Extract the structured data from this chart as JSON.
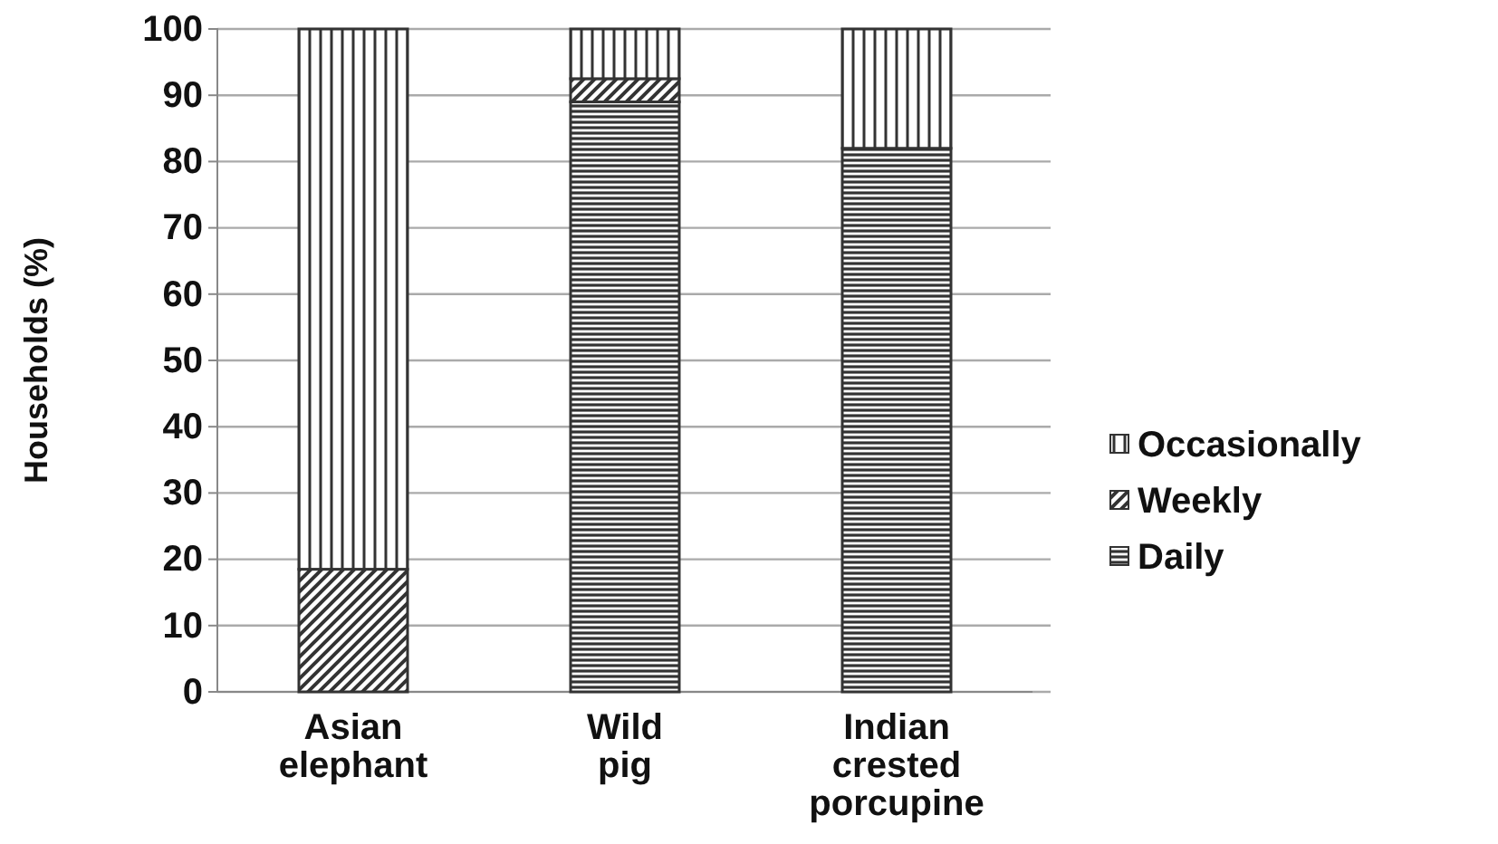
{
  "chart_data": {
    "type": "bar",
    "stacked": true,
    "ylabel": "Households (%)",
    "categories": [
      "Asian elephant",
      "Wild pig",
      "Indian crested porcupine"
    ],
    "series": [
      {
        "name": "Daily",
        "color": "#333333",
        "values": [
          0,
          89,
          82
        ]
      },
      {
        "name": "Weekly",
        "color": "#333333",
        "values": [
          18.5,
          3.5,
          0
        ]
      },
      {
        "name": "Occasionally",
        "color": "#333333",
        "values": [
          81.5,
          7.5,
          18
        ]
      }
    ],
    "ylim": [
      0,
      100
    ],
    "yticks": [
      0,
      10,
      20,
      30,
      40,
      50,
      60,
      70,
      80,
      90,
      100
    ],
    "grid": "y",
    "legend": "right"
  }
}
